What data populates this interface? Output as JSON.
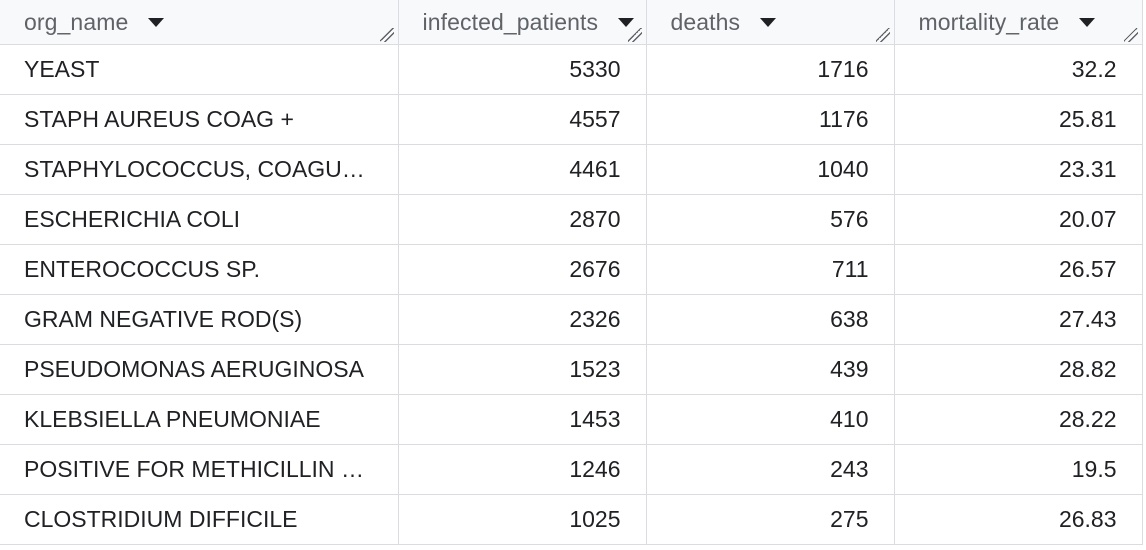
{
  "table": {
    "columns": [
      {
        "key": "org_name",
        "label": "org_name",
        "align": "left"
      },
      {
        "key": "infected_patients",
        "label": "infected_patients",
        "align": "right"
      },
      {
        "key": "deaths",
        "label": "deaths",
        "align": "right"
      },
      {
        "key": "mortality_rate",
        "label": "mortality_rate",
        "align": "right"
      }
    ],
    "rows": [
      [
        "YEAST",
        "5330",
        "1716",
        "32.2"
      ],
      [
        "STAPH AUREUS COAG +",
        "4557",
        "1176",
        "25.81"
      ],
      [
        "STAPHYLOCOCCUS, COAGULA…",
        "4461",
        "1040",
        "23.31"
      ],
      [
        "ESCHERICHIA COLI",
        "2870",
        "576",
        "20.07"
      ],
      [
        "ENTEROCOCCUS SP.",
        "2676",
        "711",
        "26.57"
      ],
      [
        "GRAM NEGATIVE ROD(S)",
        "2326",
        "638",
        "27.43"
      ],
      [
        "PSEUDOMONAS AERUGINOSA",
        "1523",
        "439",
        "28.82"
      ],
      [
        "KLEBSIELLA PNEUMONIAE",
        "1453",
        "410",
        "28.22"
      ],
      [
        "POSITIVE FOR METHICILLIN R…",
        "1246",
        "243",
        "19.5"
      ],
      [
        "CLOSTRIDIUM DIFFICILE",
        "1025",
        "275",
        "26.83"
      ]
    ]
  },
  "icons": {
    "sort": "sort-dropdown-icon",
    "resize": "column-resize-icon"
  },
  "colors": {
    "header_bg": "#f8f9fa",
    "header_text": "#5f6368",
    "cell_text": "#202124",
    "grid_line": "#dadce0"
  }
}
